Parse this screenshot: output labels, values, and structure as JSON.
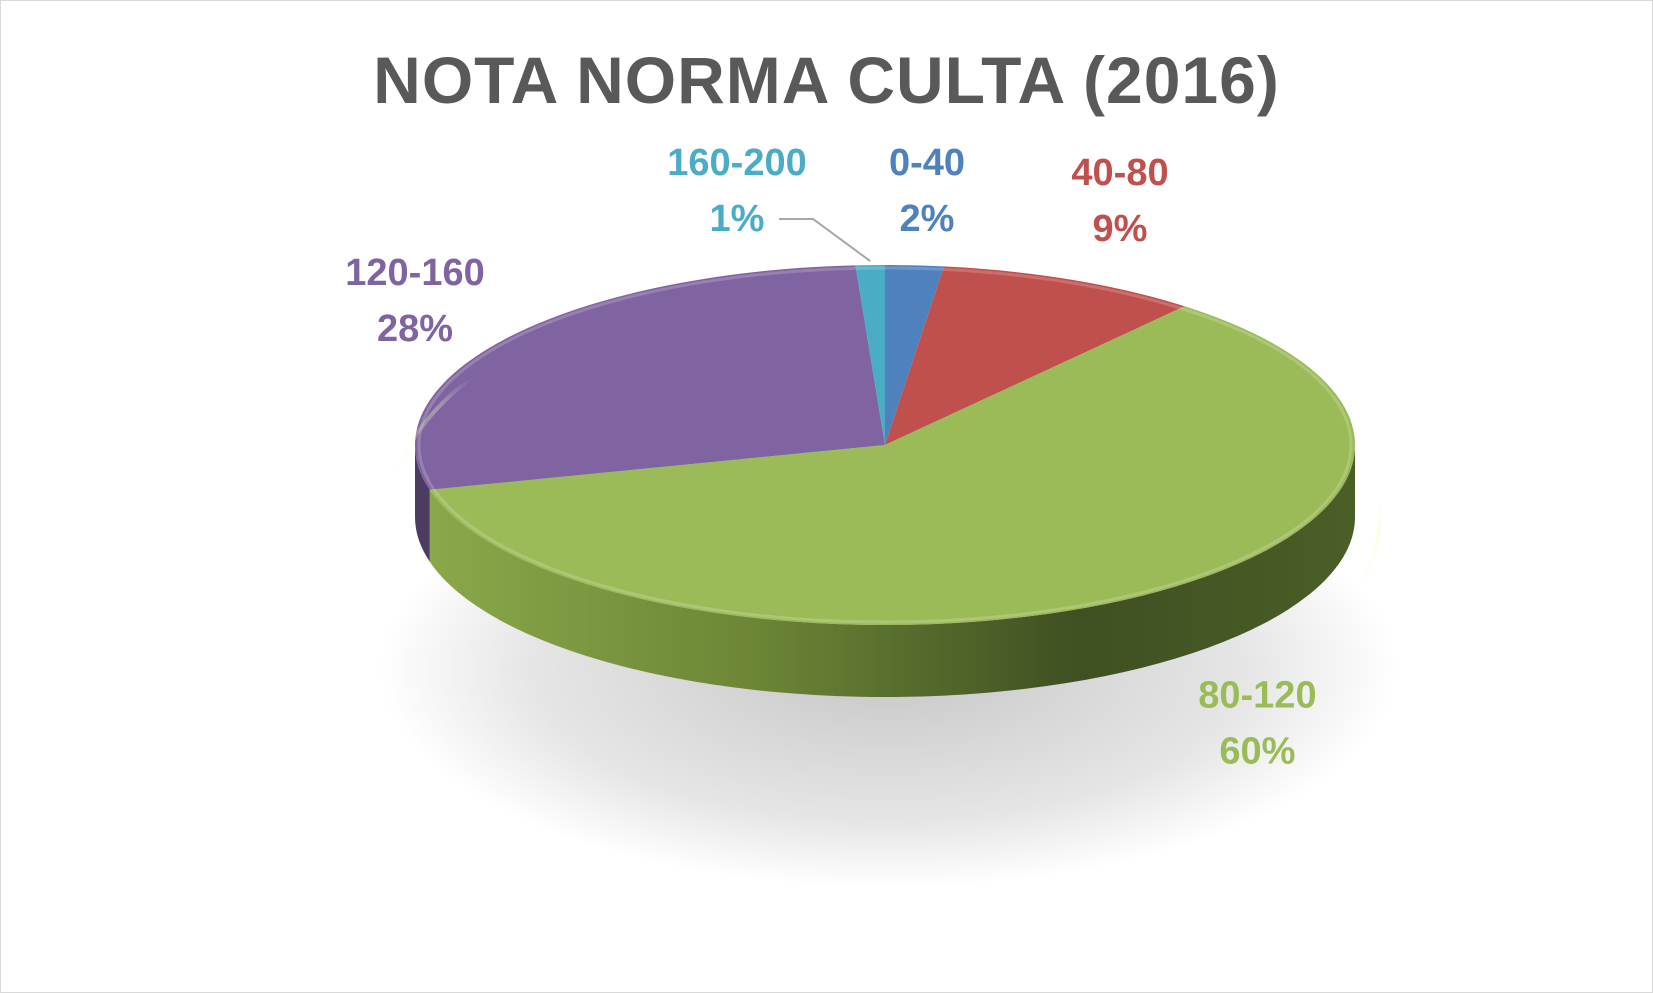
{
  "chart_data": {
    "type": "pie",
    "title": "NOTA NORMA CULTA (2016)",
    "categories": [
      "0-40",
      "40-80",
      "80-120",
      "120-160",
      "160-200"
    ],
    "values": [
      2,
      9,
      60,
      28,
      1
    ],
    "value_labels": [
      "2%",
      "9%",
      "60%",
      "28%",
      "1%"
    ],
    "colors": [
      "#4f81bd",
      "#c0504d",
      "#9bbb59",
      "#8064a2",
      "#4bacc6"
    ],
    "unit": "%",
    "three_d": true,
    "legend": "none",
    "data_labels": "category-and-percentage"
  }
}
